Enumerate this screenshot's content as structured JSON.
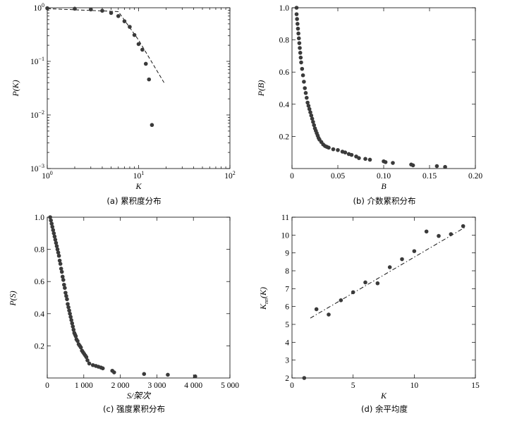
{
  "chart_data": [
    {
      "type": "scatter",
      "caption": "(a) 累积度分布",
      "xlabel": "K",
      "ylabel": "P(K)",
      "xscale": "log",
      "yscale": "log",
      "xlim": [
        1,
        100
      ],
      "ylim": [
        0.001,
        1
      ],
      "xticks": [
        {
          "v": 1,
          "base": "10",
          "exp": "0"
        },
        {
          "v": 10,
          "base": "10",
          "exp": "1"
        },
        {
          "v": 100,
          "base": "10",
          "exp": "2"
        }
      ],
      "yticks": [
        {
          "v": 1,
          "base": "10",
          "exp": "0"
        },
        {
          "v": 0.1,
          "base": "10",
          "exp": "−1"
        },
        {
          "v": 0.01,
          "base": "10",
          "exp": "−2"
        },
        {
          "v": 0.001,
          "base": "10",
          "exp": "−3"
        }
      ],
      "points": {
        "x": [
          1,
          2,
          3,
          4,
          5,
          6,
          7,
          8,
          9,
          10,
          11,
          12,
          13,
          14
        ],
        "y": [
          0.98,
          0.96,
          0.93,
          0.88,
          0.8,
          0.7,
          0.56,
          0.44,
          0.31,
          0.21,
          0.165,
          0.09,
          0.046,
          0.0065
        ]
      },
      "fit_line": {
        "x": [
          1,
          6,
          10,
          19
        ],
        "y": [
          0.96,
          0.85,
          0.25,
          0.04
        ],
        "style": "dashed"
      }
    },
    {
      "type": "scatter",
      "caption": "(b) 介数累积分布",
      "xlabel": "B",
      "ylabel": "P(B)",
      "xlim": [
        0,
        0.2
      ],
      "ylim": [
        0,
        1.0
      ],
      "xticks": [
        {
          "v": 0,
          "t": "0"
        },
        {
          "v": 0.05,
          "t": "0.05"
        },
        {
          "v": 0.1,
          "t": "0.10"
        },
        {
          "v": 0.15,
          "t": "0.15"
        },
        {
          "v": 0.2,
          "t": "0.20"
        }
      ],
      "yticks": [
        {
          "v": 0.2,
          "t": "0.2"
        },
        {
          "v": 0.4,
          "t": "0.4"
        },
        {
          "v": 0.6,
          "t": "0.6"
        },
        {
          "v": 0.8,
          "t": "0.8"
        },
        {
          "v": 1.0,
          "t": "1.0"
        }
      ],
      "points": {
        "x": [
          0.005,
          0.0055,
          0.006,
          0.0065,
          0.007,
          0.0075,
          0.008,
          0.0085,
          0.009,
          0.0095,
          0.01,
          0.011,
          0.012,
          0.013,
          0.014,
          0.015,
          0.016,
          0.017,
          0.018,
          0.019,
          0.02,
          0.021,
          0.022,
          0.023,
          0.024,
          0.025,
          0.026,
          0.027,
          0.028,
          0.029,
          0.03,
          0.032,
          0.034,
          0.036,
          0.038,
          0.04,
          0.045,
          0.05,
          0.055,
          0.058,
          0.062,
          0.065,
          0.07,
          0.073,
          0.08,
          0.085,
          0.1,
          0.102,
          0.11,
          0.13,
          0.132,
          0.158,
          0.167
        ],
        "y": [
          0.96,
          0.93,
          0.9,
          0.87,
          0.84,
          0.81,
          0.78,
          0.75,
          0.72,
          0.69,
          0.66,
          0.62,
          0.58,
          0.54,
          0.5,
          0.47,
          0.44,
          0.41,
          0.39,
          0.37,
          0.35,
          0.33,
          0.31,
          0.29,
          0.27,
          0.25,
          0.235,
          0.22,
          0.205,
          0.19,
          0.18,
          0.165,
          0.15,
          0.14,
          0.135,
          0.13,
          0.12,
          0.115,
          0.105,
          0.1,
          0.09,
          0.085,
          0.075,
          0.065,
          0.06,
          0.055,
          0.045,
          0.04,
          0.035,
          0.025,
          0.02,
          0.015,
          0.01
        ]
      },
      "outlier": {
        "x": 0.005,
        "y": 1.0
      }
    },
    {
      "type": "scatter",
      "caption": "(c) 强度累积分布",
      "xlabel": "S/架次",
      "ylabel": "P(S)",
      "xlim": [
        0,
        5000
      ],
      "ylim": [
        0,
        1.0
      ],
      "xticks": [
        {
          "v": 0,
          "t": "0"
        },
        {
          "v": 1000,
          "t": "1 000"
        },
        {
          "v": 2000,
          "t": "2 000"
        },
        {
          "v": 3000,
          "t": "3 000"
        },
        {
          "v": 4000,
          "t": "4 000"
        },
        {
          "v": 5000,
          "t": "5 000"
        }
      ],
      "yticks": [
        {
          "v": 0.2,
          "t": "0.2"
        },
        {
          "v": 0.4,
          "t": "0.4"
        },
        {
          "v": 0.6,
          "t": "0.6"
        },
        {
          "v": 0.8,
          "t": "0.8"
        },
        {
          "v": 1.0,
          "t": "1.0"
        }
      ],
      "points": {
        "x": [
          80,
          100,
          120,
          140,
          160,
          180,
          200,
          220,
          240,
          260,
          280,
          300,
          320,
          340,
          360,
          380,
          400,
          420,
          440,
          460,
          480,
          500,
          520,
          540,
          560,
          580,
          600,
          620,
          640,
          660,
          680,
          700,
          720,
          740,
          760,
          780,
          800,
          830,
          860,
          890,
          920,
          950,
          980,
          1010,
          1040,
          1070,
          1100,
          1150,
          1250,
          1330,
          1400,
          1470,
          1520,
          1780,
          1830,
          2650,
          3300,
          4050
        ],
        "y": [
          1.0,
          0.98,
          0.96,
          0.94,
          0.92,
          0.9,
          0.88,
          0.86,
          0.84,
          0.82,
          0.8,
          0.78,
          0.76,
          0.73,
          0.71,
          0.68,
          0.66,
          0.63,
          0.61,
          0.58,
          0.56,
          0.53,
          0.51,
          0.49,
          0.46,
          0.44,
          0.42,
          0.4,
          0.38,
          0.36,
          0.34,
          0.32,
          0.3,
          0.28,
          0.27,
          0.26,
          0.24,
          0.23,
          0.21,
          0.2,
          0.19,
          0.17,
          0.16,
          0.15,
          0.14,
          0.13,
          0.11,
          0.09,
          0.08,
          0.075,
          0.07,
          0.065,
          0.06,
          0.045,
          0.035,
          0.025,
          0.02,
          0.01
        ]
      }
    },
    {
      "type": "scatter",
      "caption": "(d) 余平均度",
      "xlabel": "K",
      "ylabel_main": "K",
      "ylabel_sub": "nn",
      "ylabel_tail": "(K)",
      "xlim": [
        0,
        15
      ],
      "ylim": [
        2,
        11
      ],
      "xticks": [
        {
          "v": 0,
          "t": "0"
        },
        {
          "v": 5,
          "t": "5"
        },
        {
          "v": 10,
          "t": "10"
        },
        {
          "v": 15,
          "t": "15"
        }
      ],
      "yticks": [
        {
          "v": 2,
          "t": "2"
        },
        {
          "v": 3,
          "t": "3"
        },
        {
          "v": 4,
          "t": "4"
        },
        {
          "v": 5,
          "t": "5"
        },
        {
          "v": 6,
          "t": "6"
        },
        {
          "v": 7,
          "t": "7"
        },
        {
          "v": 8,
          "t": "8"
        },
        {
          "v": 9,
          "t": "9"
        },
        {
          "v": 10,
          "t": "10"
        },
        {
          "v": 11,
          "t": "11"
        }
      ],
      "points": {
        "x": [
          1,
          2,
          3,
          4,
          5,
          6,
          7,
          8,
          9,
          10,
          11,
          12,
          13,
          14
        ],
        "y": [
          2.0,
          5.85,
          5.55,
          6.35,
          6.8,
          7.35,
          7.3,
          8.2,
          8.65,
          9.1,
          10.2,
          9.95,
          10.05,
          10.5
        ]
      },
      "fit_line": {
        "x": [
          1.5,
          14.2
        ],
        "y": [
          5.35,
          10.45
        ],
        "style": "dash-dot"
      }
    }
  ]
}
